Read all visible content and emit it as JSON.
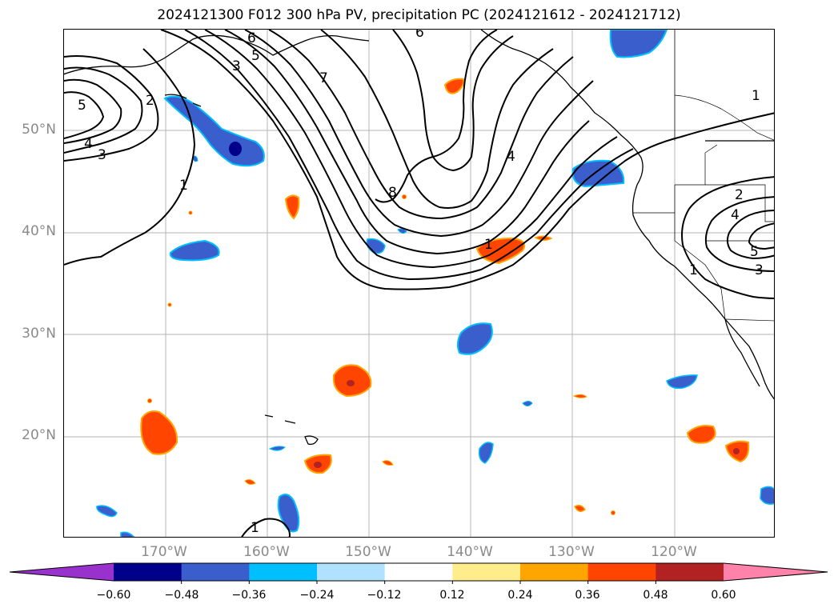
{
  "title": "2024121300 F012 300 hPa PV, precipitation PC (2024121612 - 2024121712)",
  "lat_labels": [
    "50°N",
    "40°N",
    "30°N",
    "20°N"
  ],
  "lon_labels": [
    "170°W",
    "160°W",
    "150°W",
    "140°W",
    "130°W",
    "120°W"
  ],
  "contour_labels": [
    "5",
    "4",
    "3",
    "2",
    "3",
    "5",
    "6",
    "6",
    "7",
    "1",
    "8",
    "4",
    "1",
    "2",
    "4",
    "5",
    "3",
    "1",
    "1",
    "1"
  ],
  "colorbar": {
    "ticks": [
      "−0.60",
      "−0.48",
      "−0.36",
      "−0.24",
      "−0.12",
      "0.12",
      "0.24",
      "0.36",
      "0.48",
      "0.60"
    ],
    "colors": [
      "#9932cc",
      "#00008b",
      "#3a5fcd",
      "#00bfff",
      "#b0e2ff",
      "#ffffff",
      "#ffec8b",
      "#ffa500",
      "#ff4500",
      "#b22222",
      "#ff82ab"
    ]
  }
}
